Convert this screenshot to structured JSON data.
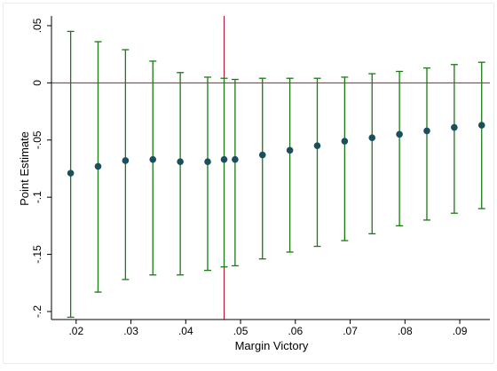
{
  "chart_data": {
    "type": "scatter",
    "title": "",
    "xlabel": "Margin Victory",
    "ylabel": "Point Estimate",
    "xlim": [
      0.0155,
      0.0955
    ],
    "ylim": [
      -0.207,
      0.0585
    ],
    "x_ticks": [
      0.02,
      0.03,
      0.04,
      0.05,
      0.06,
      0.07,
      0.08,
      0.09
    ],
    "x_tick_labels": [
      ".02",
      ".03",
      ".04",
      ".05",
      ".06",
      ".07",
      ".08",
      ".09"
    ],
    "y_ticks": [
      0.05,
      0,
      -0.05,
      -0.1,
      -0.15,
      -0.2
    ],
    "y_tick_labels": [
      ".05",
      "0",
      "-.05",
      "-.1",
      "-.15",
      "-.2"
    ],
    "grid": false,
    "reference_lines": {
      "h": 0,
      "v": 0.047
    },
    "colors": {
      "errorbar": "#1a7a14",
      "point": "#1b4f5c",
      "reference": "#b0132f"
    },
    "series": [
      {
        "x": [
          0.019,
          0.024,
          0.029,
          0.034,
          0.039,
          0.044,
          0.047,
          0.049,
          0.054,
          0.059,
          0.064,
          0.069,
          0.074,
          0.079,
          0.084,
          0.089,
          0.094
        ],
        "y": [
          -0.079,
          -0.073,
          -0.068,
          -0.067,
          -0.069,
          -0.069,
          -0.067,
          -0.067,
          -0.063,
          -0.059,
          -0.055,
          -0.051,
          -0.048,
          -0.045,
          -0.042,
          -0.039,
          -0.037
        ],
        "lower": [
          -0.205,
          -0.183,
          -0.172,
          -0.168,
          -0.168,
          -0.164,
          -0.161,
          -0.16,
          -0.154,
          -0.148,
          -0.143,
          -0.138,
          -0.132,
          -0.125,
          -0.12,
          -0.114,
          -0.11
        ],
        "upper": [
          0.045,
          0.036,
          0.029,
          0.019,
          0.009,
          0.005,
          0.004,
          0.003,
          0.004,
          0.004,
          0.004,
          0.005,
          0.008,
          0.01,
          0.013,
          0.016,
          0.018
        ]
      }
    ]
  }
}
